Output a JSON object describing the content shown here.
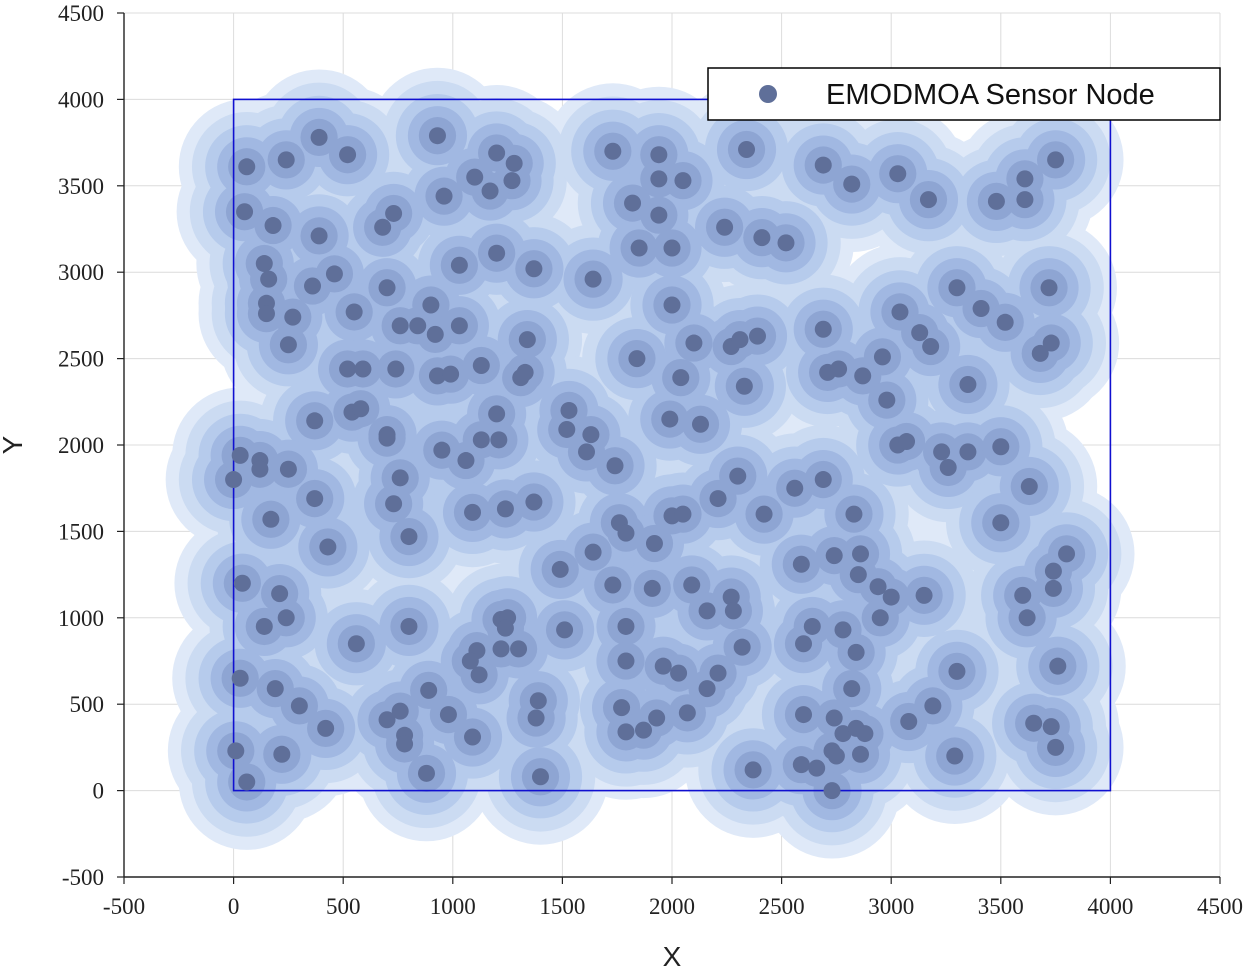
{
  "chart_data": {
    "type": "scatter",
    "title": "",
    "xlabel": "X",
    "ylabel": "Y",
    "xlim": [
      -500,
      4500
    ],
    "ylim": [
      -500,
      4500
    ],
    "xticks": [
      "-500",
      "0",
      "500",
      "1000",
      "1500",
      "2000",
      "2500",
      "3000",
      "3500",
      "4000",
      "4500"
    ],
    "yticks": [
      "-500",
      "0",
      "500",
      "1000",
      "1500",
      "2000",
      "2500",
      "3000",
      "3500",
      "4000",
      "4500"
    ],
    "grid": true,
    "legend": {
      "position": "top-right",
      "entries": [
        "EMODMOA Sensor Node"
      ]
    },
    "region": {
      "x": [
        0,
        4000
      ],
      "y": [
        0,
        4000
      ]
    },
    "colors": {
      "node": "#5f6f99",
      "coverage": "#a9c3ea",
      "region": "#1010d0",
      "grid": "#dcdcdc"
    },
    "series": [
      {
        "name": "EMODMOA Sensor Node",
        "points": [
          [
            60,
            3610
          ],
          [
            50,
            3350
          ],
          [
            240,
            3650
          ],
          [
            390,
            3780
          ],
          [
            520,
            3680
          ],
          [
            930,
            3790
          ],
          [
            1200,
            3690
          ],
          [
            1280,
            3630
          ],
          [
            1270,
            3530
          ],
          [
            1100,
            3550
          ],
          [
            1170,
            3470
          ],
          [
            960,
            3440
          ],
          [
            1730,
            3700
          ],
          [
            1940,
            3680
          ],
          [
            1940,
            3540
          ],
          [
            2050,
            3530
          ],
          [
            2340,
            3710
          ],
          [
            2690,
            3620
          ],
          [
            2820,
            3510
          ],
          [
            3030,
            3570
          ],
          [
            3170,
            3420
          ],
          [
            3610,
            3540
          ],
          [
            3610,
            3420
          ],
          [
            3480,
            3410
          ],
          [
            3750,
            3650
          ],
          [
            180,
            3270
          ],
          [
            390,
            3210
          ],
          [
            680,
            3260
          ],
          [
            730,
            3340
          ],
          [
            1820,
            3400
          ],
          [
            1940,
            3330
          ],
          [
            1850,
            3140
          ],
          [
            2000,
            3140
          ],
          [
            2240,
            3260
          ],
          [
            2410,
            3200
          ],
          [
            2520,
            3170
          ],
          [
            140,
            3050
          ],
          [
            160,
            2960
          ],
          [
            360,
            2920
          ],
          [
            460,
            2990
          ],
          [
            1030,
            3040
          ],
          [
            1200,
            3110
          ],
          [
            1370,
            3020
          ],
          [
            1640,
            2960
          ],
          [
            2000,
            2810
          ],
          [
            700,
            2910
          ],
          [
            3300,
            2910
          ],
          [
            3410,
            2790
          ],
          [
            3520,
            2710
          ],
          [
            3720,
            2910
          ],
          [
            150,
            2820
          ],
          [
            150,
            2760
          ],
          [
            270,
            2740
          ],
          [
            250,
            2580
          ],
          [
            550,
            2770
          ],
          [
            760,
            2690
          ],
          [
            840,
            2690
          ],
          [
            900,
            2810
          ],
          [
            920,
            2640
          ],
          [
            1030,
            2690
          ],
          [
            1340,
            2610
          ],
          [
            2100,
            2590
          ],
          [
            2270,
            2570
          ],
          [
            2310,
            2610
          ],
          [
            2390,
            2630
          ],
          [
            2690,
            2670
          ],
          [
            3040,
            2770
          ],
          [
            3130,
            2650
          ],
          [
            3180,
            2570
          ],
          [
            3730,
            2590
          ],
          [
            3680,
            2530
          ],
          [
            520,
            2440
          ],
          [
            590,
            2440
          ],
          [
            740,
            2440
          ],
          [
            930,
            2400
          ],
          [
            990,
            2410
          ],
          [
            1130,
            2460
          ],
          [
            1330,
            2420
          ],
          [
            1310,
            2390
          ],
          [
            1840,
            2500
          ],
          [
            2040,
            2390
          ],
          [
            2330,
            2340
          ],
          [
            2710,
            2420
          ],
          [
            2760,
            2440
          ],
          [
            2870,
            2400
          ],
          [
            2960,
            2510
          ],
          [
            2980,
            2260
          ],
          [
            3350,
            2350
          ],
          [
            370,
            2140
          ],
          [
            540,
            2190
          ],
          [
            580,
            2210
          ],
          [
            700,
            2060
          ],
          [
            1200,
            2180
          ],
          [
            1530,
            2200
          ],
          [
            1520,
            2090
          ],
          [
            1630,
            2060
          ],
          [
            1610,
            1960
          ],
          [
            1740,
            1880
          ],
          [
            1990,
            2150
          ],
          [
            2130,
            2120
          ],
          [
            3030,
            2000
          ],
          [
            3070,
            2020
          ],
          [
            3230,
            1960
          ],
          [
            3260,
            1870
          ],
          [
            3350,
            1960
          ],
          [
            3500,
            1990
          ],
          [
            0,
            1800
          ],
          [
            30,
            1940
          ],
          [
            120,
            1910
          ],
          [
            120,
            1860
          ],
          [
            250,
            1860
          ],
          [
            700,
            2040
          ],
          [
            760,
            1810
          ],
          [
            950,
            1970
          ],
          [
            1060,
            1910
          ],
          [
            1130,
            2030
          ],
          [
            1210,
            2030
          ],
          [
            730,
            1660
          ],
          [
            370,
            1690
          ],
          [
            170,
            1570
          ],
          [
            430,
            1410
          ],
          [
            800,
            1470
          ],
          [
            1090,
            1610
          ],
          [
            1240,
            1630
          ],
          [
            1370,
            1670
          ],
          [
            1490,
            1280
          ],
          [
            1760,
            1550
          ],
          [
            1790,
            1490
          ],
          [
            2000,
            1590
          ],
          [
            2050,
            1600
          ],
          [
            2210,
            1690
          ],
          [
            2300,
            1820
          ],
          [
            2420,
            1600
          ],
          [
            2560,
            1750
          ],
          [
            2690,
            1800
          ],
          [
            2830,
            1600
          ],
          [
            3630,
            1760
          ],
          [
            3500,
            1550
          ],
          [
            1640,
            1380
          ],
          [
            1920,
            1430
          ],
          [
            2590,
            1310
          ],
          [
            2740,
            1360
          ],
          [
            2860,
            1370
          ],
          [
            2850,
            1250
          ],
          [
            2940,
            1180
          ],
          [
            3000,
            1120
          ],
          [
            3150,
            1130
          ],
          [
            1730,
            1190
          ],
          [
            1910,
            1170
          ],
          [
            2090,
            1190
          ],
          [
            2270,
            1120
          ],
          [
            2280,
            1040
          ],
          [
            2160,
            1040
          ],
          [
            3600,
            1130
          ],
          [
            3740,
            1270
          ],
          [
            3800,
            1370
          ],
          [
            3740,
            1170
          ],
          [
            3620,
            1000
          ],
          [
            40,
            1200
          ],
          [
            210,
            1140
          ],
          [
            140,
            950
          ],
          [
            240,
            1000
          ],
          [
            560,
            850
          ],
          [
            800,
            950
          ],
          [
            1220,
            990
          ],
          [
            1250,
            1000
          ],
          [
            1240,
            940
          ],
          [
            1110,
            810
          ],
          [
            1080,
            750
          ],
          [
            1120,
            670
          ],
          [
            1220,
            820
          ],
          [
            1300,
            820
          ],
          [
            1510,
            930
          ],
          [
            1790,
            950
          ],
          [
            1790,
            750
          ],
          [
            1960,
            720
          ],
          [
            2030,
            680
          ],
          [
            2210,
            680
          ],
          [
            2320,
            830
          ],
          [
            2600,
            850
          ],
          [
            2640,
            950
          ],
          [
            2780,
            930
          ],
          [
            2840,
            800
          ],
          [
            2950,
            1000
          ],
          [
            3760,
            720
          ],
          [
            3300,
            690
          ],
          [
            30,
            650
          ],
          [
            190,
            590
          ],
          [
            300,
            490
          ],
          [
            420,
            360
          ],
          [
            700,
            410
          ],
          [
            760,
            460
          ],
          [
            780,
            320
          ],
          [
            780,
            270
          ],
          [
            890,
            580
          ],
          [
            980,
            440
          ],
          [
            1090,
            310
          ],
          [
            1380,
            420
          ],
          [
            1390,
            520
          ],
          [
            1770,
            480
          ],
          [
            1790,
            340
          ],
          [
            1870,
            350
          ],
          [
            1930,
            420
          ],
          [
            2070,
            450
          ],
          [
            2160,
            590
          ],
          [
            2600,
            440
          ],
          [
            2820,
            590
          ],
          [
            2780,
            330
          ],
          [
            2840,
            360
          ],
          [
            2880,
            330
          ],
          [
            3080,
            400
          ],
          [
            3190,
            490
          ],
          [
            3650,
            390
          ],
          [
            3730,
            370
          ],
          [
            3750,
            250
          ],
          [
            2740,
            420
          ],
          [
            10,
            230
          ],
          [
            220,
            210
          ],
          [
            60,
            50
          ],
          [
            880,
            100
          ],
          [
            1400,
            80
          ],
          [
            2370,
            120
          ],
          [
            2590,
            150
          ],
          [
            2660,
            130
          ],
          [
            2730,
            230
          ],
          [
            2750,
            200
          ],
          [
            2860,
            210
          ],
          [
            2730,
            0
          ],
          [
            3290,
            200
          ]
        ]
      }
    ]
  }
}
